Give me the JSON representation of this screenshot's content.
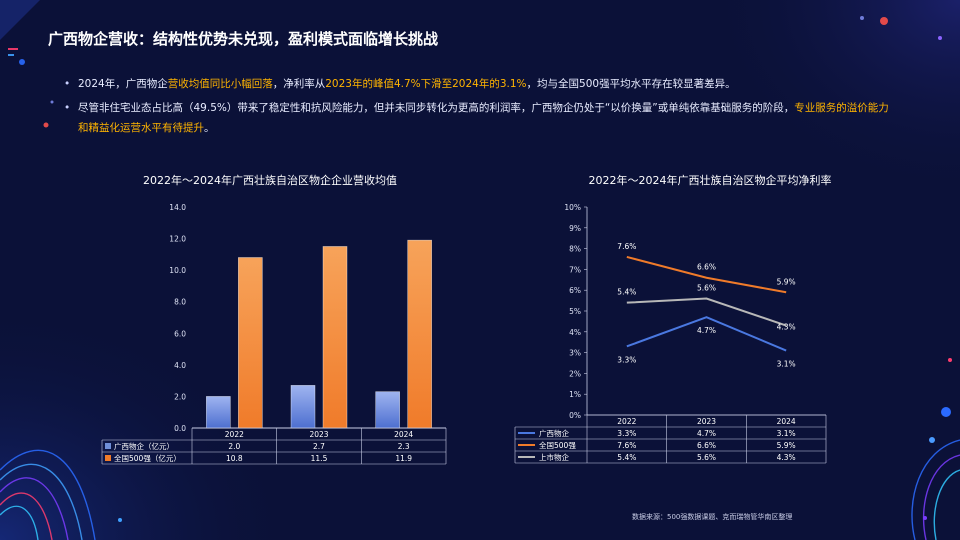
{
  "page": {
    "title": "广西物企营收：结构性优势未兑现，盈利模式面临增长挑战",
    "bullet1": {
      "p1": "2024年，广西物企",
      "h1": "营收均值同比小幅回落",
      "p2": "，净利率从",
      "h2": "2023年的峰值4.7%下滑至2024年的3.1%",
      "p3": "，均与全国500强平均水平存在较显著差异。"
    },
    "bullet2": {
      "p1": "尽管非住宅业态占比高（49.5%）带来了稳定性和抗风险能力，但并未同步转化为更高的利润率，广西物企仍处于“以价换量”或单纯依靠基础服务的阶段，",
      "h1": "专业服务的溢价能力和精益化运营水平有待提升",
      "p2": "。"
    },
    "source": "数据来源：500强数据课题、克而瑞物管华南区整理"
  },
  "colors": {
    "accent": "#ffb400",
    "gx_bar": "#6f8fd8",
    "top500_bar": "#f07b2a",
    "gx_line": "#4a78e0",
    "top500_line": "#f07b2a",
    "listed_line": "#b8b8b8"
  },
  "chart_data": [
    {
      "type": "bar",
      "title": "2022年～2024年广西壮族自治区物企企业营收均值",
      "categories": [
        "2022",
        "2023",
        "2024"
      ],
      "series": [
        {
          "name": "广西物企（亿元）",
          "values": [
            2.0,
            2.7,
            2.3
          ],
          "labels": [
            "2.0",
            "2.7",
            "2.3"
          ]
        },
        {
          "name": "全国500强（亿元）",
          "values": [
            10.8,
            11.5,
            11.9
          ],
          "labels": [
            "10.8",
            "11.5",
            "11.9"
          ]
        }
      ],
      "ylim": [
        0,
        14
      ],
      "yticks": [
        "0.0",
        "2.0",
        "4.0",
        "6.0",
        "8.0",
        "10.0",
        "12.0",
        "14.0"
      ],
      "legend": "data-table"
    },
    {
      "type": "line",
      "title": "2022年～2024年广西壮族自治区物企平均净利率",
      "categories": [
        "2022",
        "2023",
        "2024"
      ],
      "series": [
        {
          "name": "广西物企",
          "values": [
            3.3,
            4.7,
            3.1
          ],
          "labels": [
            "3.3%",
            "4.7%",
            "3.1%"
          ]
        },
        {
          "name": "全国500强",
          "values": [
            7.6,
            6.6,
            5.9
          ],
          "labels": [
            "7.6%",
            "6.6%",
            "5.9%"
          ]
        },
        {
          "name": "上市物企",
          "values": [
            5.4,
            5.6,
            4.3
          ],
          "labels": [
            "5.4%",
            "5.6%",
            "4.3%"
          ]
        }
      ],
      "ylim": [
        0,
        10
      ],
      "yticks": [
        "0%",
        "1%",
        "2%",
        "3%",
        "4%",
        "5%",
        "6%",
        "7%",
        "8%",
        "9%",
        "10%"
      ],
      "legend": "data-table"
    }
  ]
}
